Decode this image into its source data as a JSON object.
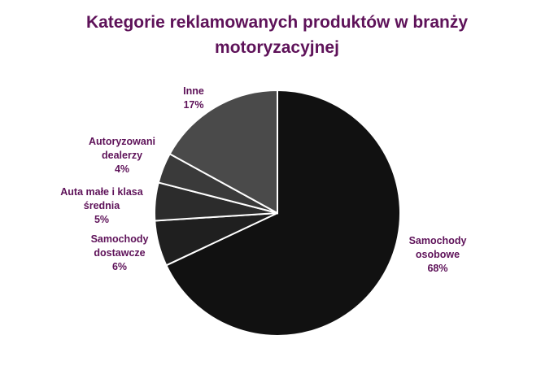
{
  "chart_data": {
    "type": "pie",
    "title": "Kategorie reklamowanych produktów w branży motoryzacyjnej",
    "categories": [
      "Samochody osobowe",
      "Samochody dostawcze",
      "Auta małe i klasa średnia",
      "Autoryzowani dealerzy",
      "Inne"
    ],
    "values": [
      68,
      6,
      5,
      4,
      17
    ],
    "value_labels": [
      "68%",
      "6%",
      "5%",
      "4%",
      "17%"
    ],
    "colors": [
      "#111111",
      "#1f1f1f",
      "#2c2c2c",
      "#3a3a3a",
      "#4a4a4a"
    ]
  }
}
